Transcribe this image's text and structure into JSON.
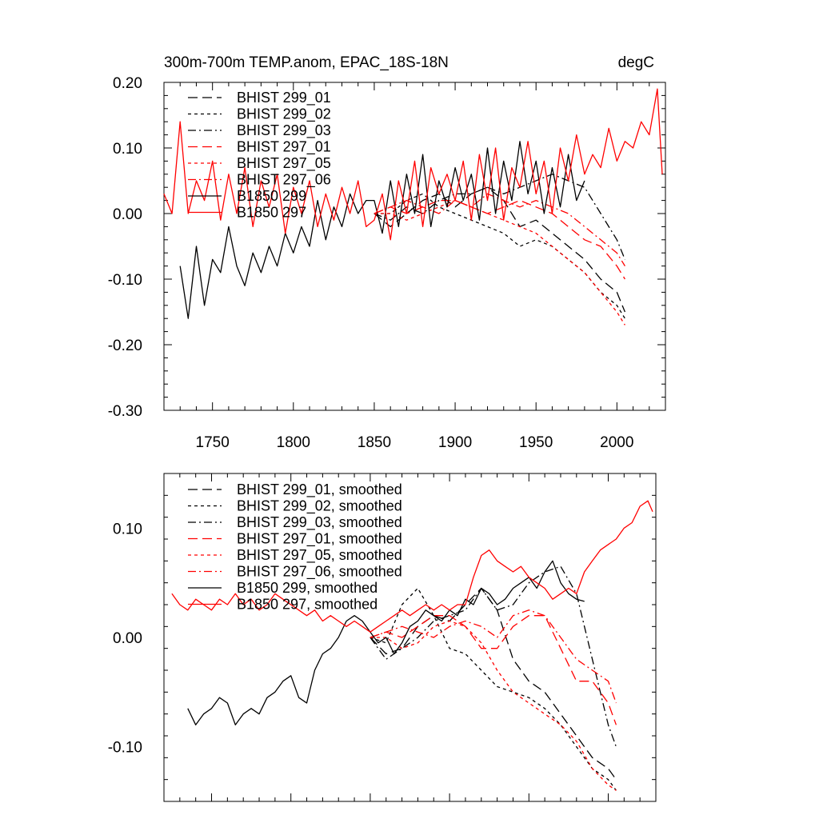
{
  "colors": {
    "black": "#000000",
    "red": "#ff0000"
  },
  "chart_data": [
    {
      "type": "line",
      "title": "300m-700m TEMP.anom, EPAC_18S-18N",
      "units_label": "degC",
      "xlim": [
        1720,
        2030
      ],
      "ylim": [
        -0.3,
        0.2
      ],
      "xticks": [
        1750,
        1800,
        1850,
        1900,
        1950,
        2000
      ],
      "xtick_labels": [
        "1750",
        "1800",
        "1850",
        "1900",
        "1950",
        "2000"
      ],
      "yticks": [
        -0.3,
        -0.2,
        -0.1,
        0.0,
        0.1,
        0.2
      ],
      "ytick_labels": [
        "-0.30",
        "-0.20",
        "-0.10",
        "0.00",
        "0.10",
        "0.20"
      ],
      "legend_position": "top-left",
      "series": [
        {
          "name": "BHIST 299_01",
          "color": "#000000",
          "dash": "long-dash",
          "x": [
            1850,
            1860,
            1870,
            1880,
            1890,
            1900,
            1910,
            1920,
            1930,
            1940,
            1950,
            1960,
            1970,
            1980,
            1990,
            2000,
            2005
          ],
          "y": [
            0.0,
            -0.02,
            0.0,
            0.02,
            0.03,
            0.01,
            0.03,
            0.04,
            0.02,
            -0.02,
            -0.01,
            -0.03,
            -0.05,
            -0.07,
            -0.1,
            -0.12,
            -0.15
          ]
        },
        {
          "name": "BHIST 299_02",
          "color": "#000000",
          "dash": "short-dash",
          "x": [
            1850,
            1860,
            1870,
            1880,
            1890,
            1900,
            1910,
            1920,
            1930,
            1940,
            1950,
            1960,
            1970,
            1980,
            1990,
            2000,
            2005
          ],
          "y": [
            0.0,
            0.0,
            0.02,
            0.03,
            0.01,
            0.0,
            -0.01,
            -0.02,
            -0.03,
            -0.05,
            -0.04,
            -0.05,
            -0.07,
            -0.09,
            -0.12,
            -0.14,
            -0.16
          ]
        },
        {
          "name": "BHIST 299_03",
          "color": "#000000",
          "dash": "dash-dot",
          "x": [
            1850,
            1860,
            1870,
            1880,
            1890,
            1900,
            1910,
            1920,
            1930,
            1940,
            1950,
            1960,
            1970,
            1980,
            1990,
            2000,
            2005
          ],
          "y": [
            0.0,
            -0.01,
            0.01,
            0.0,
            0.02,
            0.03,
            0.03,
            0.04,
            0.03,
            0.04,
            0.05,
            0.06,
            0.05,
            0.04,
            0.0,
            -0.04,
            -0.07
          ]
        },
        {
          "name": "BHIST 297_01",
          "color": "#ff0000",
          "dash": "long-dash",
          "x": [
            1850,
            1860,
            1870,
            1880,
            1890,
            1900,
            1910,
            1920,
            1930,
            1940,
            1950,
            1960,
            1970,
            1980,
            1990,
            2000,
            2005
          ],
          "y": [
            0.0,
            0.01,
            0.0,
            0.01,
            0.02,
            0.02,
            0.01,
            0.0,
            0.01,
            0.02,
            0.01,
            0.0,
            -0.02,
            -0.04,
            -0.05,
            -0.08,
            -0.1
          ]
        },
        {
          "name": "BHIST 297_05",
          "color": "#ff0000",
          "dash": "short-dash",
          "x": [
            1850,
            1860,
            1870,
            1880,
            1890,
            1900,
            1910,
            1920,
            1930,
            1940,
            1950,
            1960,
            1970,
            1980,
            1990,
            2000,
            2005
          ],
          "y": [
            0.0,
            0.0,
            -0.01,
            0.0,
            0.01,
            0.02,
            0.01,
            0.0,
            -0.01,
            -0.02,
            -0.03,
            -0.05,
            -0.07,
            -0.09,
            -0.12,
            -0.15,
            -0.17
          ]
        },
        {
          "name": "BHIST 297_06",
          "color": "#ff0000",
          "dash": "dash-dot",
          "x": [
            1850,
            1860,
            1870,
            1880,
            1890,
            1900,
            1910,
            1920,
            1930,
            1940,
            1950,
            1960,
            1970,
            1980,
            1990,
            2000,
            2005
          ],
          "y": [
            0.0,
            0.01,
            0.02,
            0.01,
            0.0,
            0.02,
            0.01,
            0.03,
            0.02,
            0.01,
            0.02,
            0.01,
            0.0,
            -0.02,
            -0.04,
            -0.06,
            -0.08
          ]
        },
        {
          "name": "B1850 299",
          "color": "#000000",
          "dash": "solid",
          "x": [
            1730,
            1735,
            1740,
            1745,
            1750,
            1755,
            1760,
            1765,
            1770,
            1775,
            1780,
            1785,
            1790,
            1795,
            1800,
            1805,
            1810,
            1815,
            1820,
            1825,
            1830,
            1835,
            1840,
            1845,
            1850,
            1855,
            1860,
            1865,
            1870,
            1875,
            1880,
            1885,
            1890,
            1895,
            1900,
            1905,
            1910,
            1915,
            1920,
            1925,
            1930,
            1935,
            1940,
            1945,
            1950,
            1955,
            1960,
            1965,
            1970,
            1975,
            1980
          ],
          "y": [
            -0.08,
            -0.16,
            -0.05,
            -0.14,
            -0.07,
            -0.09,
            -0.02,
            -0.08,
            -0.11,
            -0.06,
            -0.09,
            -0.05,
            -0.08,
            -0.03,
            -0.06,
            -0.02,
            -0.05,
            0.02,
            -0.04,
            0.01,
            -0.02,
            0.03,
            0.0,
            0.02,
            0.02,
            -0.03,
            0.05,
            -0.02,
            0.06,
            0.0,
            0.09,
            -0.02,
            0.05,
            0.01,
            0.07,
            0.02,
            0.06,
            -0.01,
            0.1,
            0.0,
            0.08,
            0.02,
            0.11,
            0.03,
            0.08,
            0.0,
            0.07,
            0.01,
            0.09,
            0.02,
            0.05
          ]
        },
        {
          "name": "B1850 297",
          "color": "#ff0000",
          "dash": "solid",
          "x": [
            1720,
            1725,
            1730,
            1735,
            1740,
            1745,
            1750,
            1755,
            1760,
            1765,
            1770,
            1775,
            1780,
            1785,
            1790,
            1795,
            1800,
            1805,
            1810,
            1815,
            1820,
            1825,
            1830,
            1835,
            1840,
            1845,
            1850,
            1855,
            1860,
            1865,
            1870,
            1875,
            1880,
            1885,
            1890,
            1895,
            1900,
            1905,
            1910,
            1915,
            1920,
            1925,
            1930,
            1935,
            1940,
            1945,
            1950,
            1955,
            1960,
            1965,
            1970,
            1975,
            1980,
            1985,
            1990,
            1995,
            2000,
            2005,
            2010,
            2015,
            2020,
            2025,
            2028
          ],
          "y": [
            0.03,
            0.0,
            0.14,
            0.0,
            0.05,
            0.02,
            0.08,
            -0.01,
            0.06,
            0.0,
            0.07,
            -0.02,
            0.05,
            0.01,
            0.06,
            -0.03,
            0.04,
            0.0,
            0.05,
            -0.02,
            0.03,
            -0.01,
            0.04,
            0.0,
            0.05,
            -0.02,
            -0.01,
            0.03,
            -0.04,
            0.05,
            0.0,
            0.08,
            -0.02,
            0.07,
            0.03,
            0.06,
            0.02,
            0.08,
            -0.01,
            0.09,
            0.02,
            0.1,
            -0.01,
            0.07,
            0.04,
            0.11,
            0.03,
            0.08,
            0.0,
            0.1,
            0.05,
            0.12,
            0.06,
            0.09,
            0.07,
            0.13,
            0.08,
            0.11,
            0.1,
            0.14,
            0.12,
            0.19,
            0.06
          ]
        }
      ]
    },
    {
      "type": "line",
      "title": "",
      "xlim": [
        1720,
        2030
      ],
      "ylim": [
        -0.15,
        0.15
      ],
      "xticks": [
        1750,
        1800,
        1850,
        1900,
        1950,
        2000
      ],
      "xtick_labels": [
        "",
        "",
        "",
        "",
        "",
        ""
      ],
      "yticks": [
        -0.1,
        0.0,
        0.1
      ],
      "ytick_labels": [
        "-0.10",
        "0.00",
        "0.10"
      ],
      "legend_position": "top-left",
      "series": [
        {
          "name": "BHIST 299_01, smoothed",
          "color": "#000000",
          "dash": "long-dash",
          "x": [
            1850,
            1860,
            1870,
            1880,
            1890,
            1900,
            1910,
            1920,
            1930,
            1940,
            1950,
            1960,
            1970,
            1980,
            1990,
            2000,
            2005
          ],
          "y": [
            0.0,
            -0.015,
            -0.01,
            0.01,
            0.02,
            0.015,
            0.03,
            0.045,
            0.025,
            -0.02,
            -0.04,
            -0.05,
            -0.07,
            -0.09,
            -0.11,
            -0.12,
            -0.13
          ]
        },
        {
          "name": "BHIST 299_02, smoothed",
          "color": "#000000",
          "dash": "short-dash",
          "x": [
            1850,
            1860,
            1870,
            1880,
            1890,
            1900,
            1910,
            1920,
            1930,
            1940,
            1950,
            1960,
            1970,
            1980,
            1990,
            2000,
            2005
          ],
          "y": [
            0.0,
            -0.005,
            0.03,
            0.045,
            0.02,
            -0.01,
            -0.015,
            -0.03,
            -0.045,
            -0.05,
            -0.055,
            -0.065,
            -0.08,
            -0.1,
            -0.12,
            -0.13,
            -0.14
          ]
        },
        {
          "name": "BHIST 299_03, smoothed",
          "color": "#000000",
          "dash": "dash-dot",
          "x": [
            1850,
            1860,
            1870,
            1880,
            1890,
            1900,
            1910,
            1920,
            1930,
            1940,
            1950,
            1960,
            1970,
            1980,
            1990,
            2000,
            2005
          ],
          "y": [
            0.0,
            -0.02,
            -0.01,
            0.0,
            0.015,
            0.02,
            0.025,
            0.045,
            0.025,
            0.03,
            0.05,
            0.06,
            0.065,
            0.04,
            -0.02,
            -0.08,
            -0.1
          ]
        },
        {
          "name": "BHIST 297_01, smoothed",
          "color": "#ff0000",
          "dash": "long-dash",
          "x": [
            1850,
            1860,
            1870,
            1880,
            1890,
            1900,
            1910,
            1920,
            1930,
            1940,
            1950,
            1960,
            1970,
            1980,
            1990,
            2000,
            2005
          ],
          "y": [
            0.0,
            0.005,
            0.0,
            0.01,
            0.02,
            0.02,
            0.01,
            -0.01,
            -0.01,
            0.01,
            0.02,
            0.02,
            -0.01,
            -0.04,
            -0.04,
            -0.06,
            -0.08
          ]
        },
        {
          "name": "BHIST 297_05, smoothed",
          "color": "#ff0000",
          "dash": "short-dash",
          "x": [
            1850,
            1860,
            1870,
            1880,
            1890,
            1900,
            1910,
            1920,
            1930,
            1940,
            1950,
            1960,
            1970,
            1980,
            1990,
            2000,
            2005
          ],
          "y": [
            0.0,
            0.0,
            -0.01,
            -0.005,
            0.01,
            0.015,
            0.01,
            -0.005,
            -0.03,
            -0.05,
            -0.06,
            -0.07,
            -0.08,
            -0.095,
            -0.12,
            -0.135,
            -0.14
          ]
        },
        {
          "name": "BHIST 297_06, smoothed",
          "color": "#ff0000",
          "dash": "dash-dot",
          "x": [
            1850,
            1860,
            1870,
            1880,
            1890,
            1900,
            1910,
            1920,
            1930,
            1940,
            1950,
            1960,
            1970,
            1980,
            1990,
            2000,
            2005
          ],
          "y": [
            0.0,
            0.005,
            0.01,
            0.005,
            0.0,
            0.01,
            0.015,
            0.01,
            0.0,
            0.02,
            0.025,
            0.02,
            0.0,
            -0.02,
            -0.03,
            -0.04,
            -0.06
          ]
        },
        {
          "name": "B1850 299, smoothed",
          "color": "#000000",
          "dash": "solid",
          "x": [
            1735,
            1740,
            1745,
            1750,
            1755,
            1760,
            1765,
            1770,
            1775,
            1780,
            1785,
            1790,
            1795,
            1800,
            1805,
            1810,
            1815,
            1820,
            1825,
            1830,
            1835,
            1840,
            1845,
            1850,
            1855,
            1860,
            1865,
            1870,
            1875,
            1880,
            1885,
            1890,
            1895,
            1900,
            1905,
            1910,
            1915,
            1920,
            1925,
            1930,
            1935,
            1940,
            1945,
            1950,
            1955,
            1960,
            1965,
            1970,
            1975,
            1980,
            1985
          ],
          "y": [
            -0.065,
            -0.08,
            -0.07,
            -0.065,
            -0.055,
            -0.06,
            -0.08,
            -0.07,
            -0.065,
            -0.07,
            -0.055,
            -0.05,
            -0.04,
            -0.035,
            -0.055,
            -0.06,
            -0.03,
            -0.015,
            -0.01,
            0.0,
            0.015,
            0.02,
            0.015,
            0.005,
            -0.005,
            0.0,
            -0.015,
            -0.005,
            0.01,
            0.015,
            0.025,
            0.02,
            0.015,
            0.025,
            0.02,
            0.035,
            0.03,
            0.045,
            0.04,
            0.03,
            0.035,
            0.045,
            0.05,
            0.055,
            0.045,
            0.06,
            0.07,
            0.05,
            0.04,
            0.035,
            0.033
          ]
        },
        {
          "name": "B1850 297, smoothed",
          "color": "#ff0000",
          "dash": "solid",
          "x": [
            1725,
            1730,
            1735,
            1740,
            1745,
            1750,
            1755,
            1760,
            1765,
            1770,
            1775,
            1780,
            1785,
            1790,
            1795,
            1800,
            1805,
            1810,
            1815,
            1820,
            1825,
            1830,
            1835,
            1840,
            1845,
            1850,
            1855,
            1860,
            1865,
            1870,
            1875,
            1880,
            1885,
            1890,
            1895,
            1900,
            1905,
            1910,
            1915,
            1920,
            1925,
            1930,
            1935,
            1940,
            1945,
            1950,
            1955,
            1960,
            1965,
            1970,
            1975,
            1980,
            1985,
            1990,
            1995,
            2000,
            2005,
            2010,
            2015,
            2020,
            2025,
            2028
          ],
          "y": [
            0.04,
            0.03,
            0.025,
            0.035,
            0.03,
            0.025,
            0.035,
            0.03,
            0.04,
            0.03,
            0.035,
            0.025,
            0.03,
            0.04,
            0.035,
            0.03,
            0.025,
            0.02,
            0.025,
            0.015,
            0.02,
            0.015,
            0.01,
            0.015,
            0.01,
            0.005,
            0.01,
            0.015,
            0.02,
            0.025,
            0.02,
            0.025,
            0.03,
            0.025,
            0.03,
            0.025,
            0.03,
            0.03,
            0.055,
            0.075,
            0.08,
            0.07,
            0.065,
            0.06,
            0.065,
            0.055,
            0.05,
            0.045,
            0.035,
            0.04,
            0.045,
            0.04,
            0.06,
            0.07,
            0.08,
            0.085,
            0.09,
            0.1,
            0.105,
            0.12,
            0.125,
            0.115
          ]
        }
      ]
    }
  ]
}
